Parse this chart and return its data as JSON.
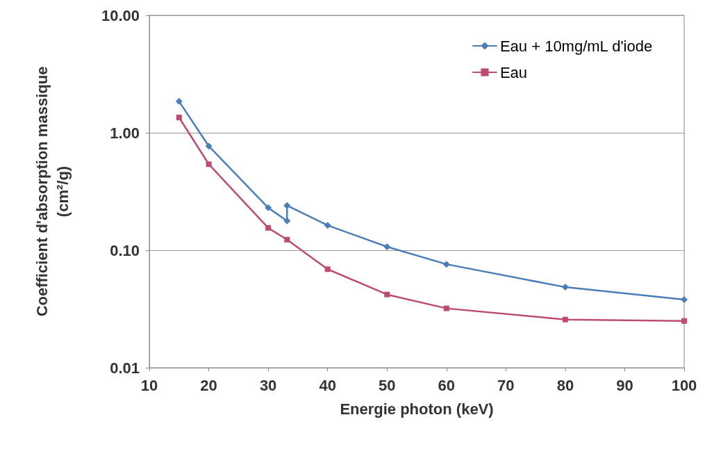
{
  "chart_data": {
    "type": "line",
    "xlabel": "Energie photon (keV)",
    "ylabel": "Coefficient d'absorption massique\n(cm²/g)",
    "xlim": [
      10,
      100
    ],
    "xticks": [
      10,
      20,
      30,
      40,
      50,
      60,
      70,
      80,
      90,
      100
    ],
    "ylim": [
      0.01,
      10
    ],
    "yticks": [
      {
        "value": 0.01,
        "label": "0.01"
      },
      {
        "value": 0.1,
        "label": "0.10"
      },
      {
        "value": 1,
        "label": "1.00"
      },
      {
        "value": 10,
        "label": "10.00"
      }
    ],
    "log": "y",
    "grid": "y",
    "legend": "top right",
    "series": [
      {
        "name": "Eau + 10mg/mL d'iode",
        "color": "#4a7ebb",
        "marker": "diamond",
        "x": [
          15,
          20,
          30,
          33.17,
          33.17,
          40,
          50,
          60,
          80,
          100
        ],
        "values": [
          1.85,
          0.77,
          0.23,
          0.178,
          0.24,
          0.163,
          0.107,
          0.076,
          0.0485,
          0.038
        ]
      },
      {
        "name": "Eau",
        "color": "#be4b73",
        "marker": "square",
        "x": [
          15,
          20,
          30,
          33.17,
          40,
          50,
          60,
          80,
          100
        ],
        "values": [
          1.35,
          0.54,
          0.155,
          0.123,
          0.069,
          0.042,
          0.032,
          0.0257,
          0.025
        ]
      }
    ]
  }
}
